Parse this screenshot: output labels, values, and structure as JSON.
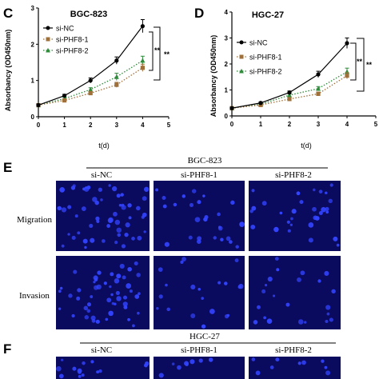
{
  "panels": {
    "C": {
      "letter": "C",
      "title": "BGC-823",
      "ylabel": "Absorbancy (OD450nm)",
      "xlabel": "t(d)",
      "significance": [
        "**",
        "**"
      ]
    },
    "D": {
      "letter": "D",
      "title": "HGC-27",
      "ylabel": "Absorbancy (OD450nm)",
      "xlabel": "t(d)",
      "significance": [
        "**",
        "**"
      ]
    },
    "E": {
      "letter": "E",
      "group": "BGC-823",
      "columns": [
        "si-NC",
        "si-PHF8-1",
        "si-PHF8-2"
      ],
      "rows": [
        "Migration",
        "Invasion"
      ]
    },
    "F": {
      "letter": "F",
      "group": "HGC-27",
      "columns": [
        "si-NC",
        "si-PHF8-1",
        "si-PHF8-2"
      ]
    }
  },
  "colors": {
    "si_nc": "#000000",
    "si_phf8_1": "#a0703a",
    "si_phf8_2": "#2e8b3a",
    "micrograph_bg": "#0a0a5e",
    "nuclei": "#3344ff"
  },
  "chart_data": [
    {
      "type": "line",
      "title": "BGC-823",
      "xlabel": "t(d)",
      "ylabel": "Absorbancy (OD450nm)",
      "xlim": [
        0,
        5
      ],
      "ylim": [
        0,
        3
      ],
      "xticks": [
        0,
        1,
        2,
        3,
        4,
        5
      ],
      "yticks": [
        0,
        1,
        2,
        3
      ],
      "legend": "top-left",
      "x": [
        0,
        1,
        2,
        3,
        4
      ],
      "series": [
        {
          "name": "si-NC",
          "values": [
            0.32,
            0.58,
            1.0,
            1.55,
            2.5
          ],
          "errors": [
            0.03,
            0.04,
            0.07,
            0.1,
            0.18
          ],
          "marker": "circle",
          "style": "solid"
        },
        {
          "name": "si-PHF8-1",
          "values": [
            0.32,
            0.45,
            0.65,
            0.88,
            1.35
          ],
          "errors": [
            0.03,
            0.04,
            0.05,
            0.07,
            0.1
          ],
          "marker": "square",
          "style": "dotted"
        },
        {
          "name": "si-PHF8-2",
          "values": [
            0.32,
            0.5,
            0.75,
            1.1,
            1.55
          ],
          "errors": [
            0.03,
            0.04,
            0.05,
            0.1,
            0.12
          ],
          "marker": "triangle",
          "style": "dotted"
        }
      ]
    },
    {
      "type": "line",
      "title": "HGC-27",
      "xlabel": "t(d)",
      "ylabel": "Absorbancy (OD450nm)",
      "xlim": [
        0,
        5
      ],
      "ylim": [
        0,
        4
      ],
      "xticks": [
        0,
        1,
        2,
        3,
        4,
        5
      ],
      "yticks": [
        0,
        1,
        2,
        3,
        4
      ],
      "legend": "top-left",
      "x": [
        0,
        1,
        2,
        3,
        4
      ],
      "series": [
        {
          "name": "si-NC",
          "values": [
            0.3,
            0.5,
            0.9,
            1.6,
            2.8
          ],
          "errors": [
            0.03,
            0.04,
            0.06,
            0.12,
            0.2
          ],
          "marker": "circle",
          "style": "solid"
        },
        {
          "name": "si-PHF8-1",
          "values": [
            0.3,
            0.42,
            0.65,
            0.85,
            1.55
          ],
          "errors": [
            0.03,
            0.04,
            0.05,
            0.07,
            0.12
          ],
          "marker": "square",
          "style": "dotted"
        },
        {
          "name": "si-PHF8-2",
          "values": [
            0.3,
            0.45,
            0.8,
            1.05,
            1.7
          ],
          "errors": [
            0.03,
            0.04,
            0.05,
            0.08,
            0.14
          ],
          "marker": "triangle",
          "style": "dotted"
        }
      ]
    }
  ]
}
